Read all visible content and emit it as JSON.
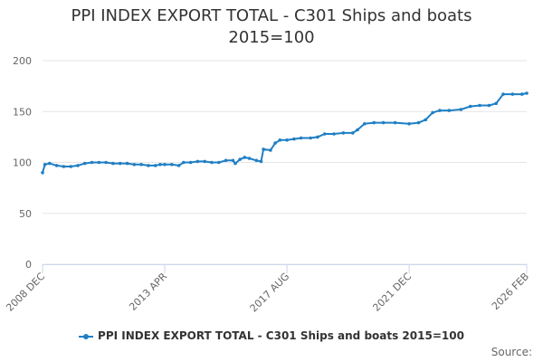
{
  "chart_data": {
    "type": "line",
    "title": [
      "PPI INDEX EXPORT TOTAL - C301 Ships and boats",
      "2015=100"
    ],
    "ylim": [
      0,
      200
    ],
    "yticks": [
      0,
      50,
      100,
      150,
      200
    ],
    "xticks": [
      "2008 DEC",
      "2013 APR",
      "2017 AUG",
      "2021 DEC",
      "2026 FEB"
    ],
    "grid": true,
    "legend_position": "bottom",
    "series": [
      {
        "name": "PPI INDEX EXPORT TOTAL - C301 Ships and boats 2015=100",
        "color": "#1f7fc4",
        "points": [
          [
            "2008-12",
            90
          ],
          [
            "2009-01",
            98
          ],
          [
            "2009-03",
            99
          ],
          [
            "2009-06",
            97
          ],
          [
            "2009-09",
            96
          ],
          [
            "2009-12",
            96
          ],
          [
            "2010-03",
            97
          ],
          [
            "2010-06",
            99
          ],
          [
            "2010-09",
            100
          ],
          [
            "2010-12",
            100
          ],
          [
            "2011-03",
            100
          ],
          [
            "2011-06",
            99
          ],
          [
            "2011-09",
            99
          ],
          [
            "2011-12",
            99
          ],
          [
            "2012-03",
            98
          ],
          [
            "2012-06",
            98
          ],
          [
            "2012-09",
            97
          ],
          [
            "2012-12",
            97
          ],
          [
            "2013-02",
            98
          ],
          [
            "2013-04",
            98
          ],
          [
            "2013-07",
            98
          ],
          [
            "2013-10",
            97
          ],
          [
            "2013-12",
            100
          ],
          [
            "2014-03",
            100
          ],
          [
            "2014-06",
            101
          ],
          [
            "2014-09",
            101
          ],
          [
            "2014-12",
            100
          ],
          [
            "2015-03",
            100
          ],
          [
            "2015-06",
            102
          ],
          [
            "2015-09",
            102
          ],
          [
            "2015-10",
            99
          ],
          [
            "2015-12",
            103
          ],
          [
            "2016-02",
            105
          ],
          [
            "2016-04",
            104
          ],
          [
            "2016-07",
            102
          ],
          [
            "2016-09",
            101
          ],
          [
            "2016-10",
            113
          ],
          [
            "2017-01",
            112
          ],
          [
            "2017-03",
            119
          ],
          [
            "2017-05",
            122
          ],
          [
            "2017-08",
            122
          ],
          [
            "2017-11",
            123
          ],
          [
            "2018-02",
            124
          ],
          [
            "2018-06",
            124
          ],
          [
            "2018-09",
            125
          ],
          [
            "2018-12",
            128
          ],
          [
            "2019-04",
            128
          ],
          [
            "2019-08",
            129
          ],
          [
            "2019-12",
            129
          ],
          [
            "2020-02",
            132
          ],
          [
            "2020-05",
            138
          ],
          [
            "2020-09",
            139
          ],
          [
            "2021-01",
            139
          ],
          [
            "2021-06",
            139
          ],
          [
            "2021-12",
            138
          ],
          [
            "2022-04",
            139
          ],
          [
            "2022-07",
            142
          ],
          [
            "2022-10",
            149
          ],
          [
            "2023-01",
            151
          ],
          [
            "2023-05",
            151
          ],
          [
            "2023-10",
            152
          ],
          [
            "2024-02",
            155
          ],
          [
            "2024-06",
            156
          ],
          [
            "2024-10",
            156
          ],
          [
            "2025-01",
            158
          ],
          [
            "2025-04",
            167
          ],
          [
            "2025-08",
            167
          ],
          [
            "2025-12",
            167
          ],
          [
            "2026-02",
            168
          ]
        ]
      }
    ]
  },
  "legend": {
    "label": "PPI INDEX EXPORT TOTAL - C301 Ships and boats 2015=100"
  },
  "source": {
    "label": "Source:"
  }
}
